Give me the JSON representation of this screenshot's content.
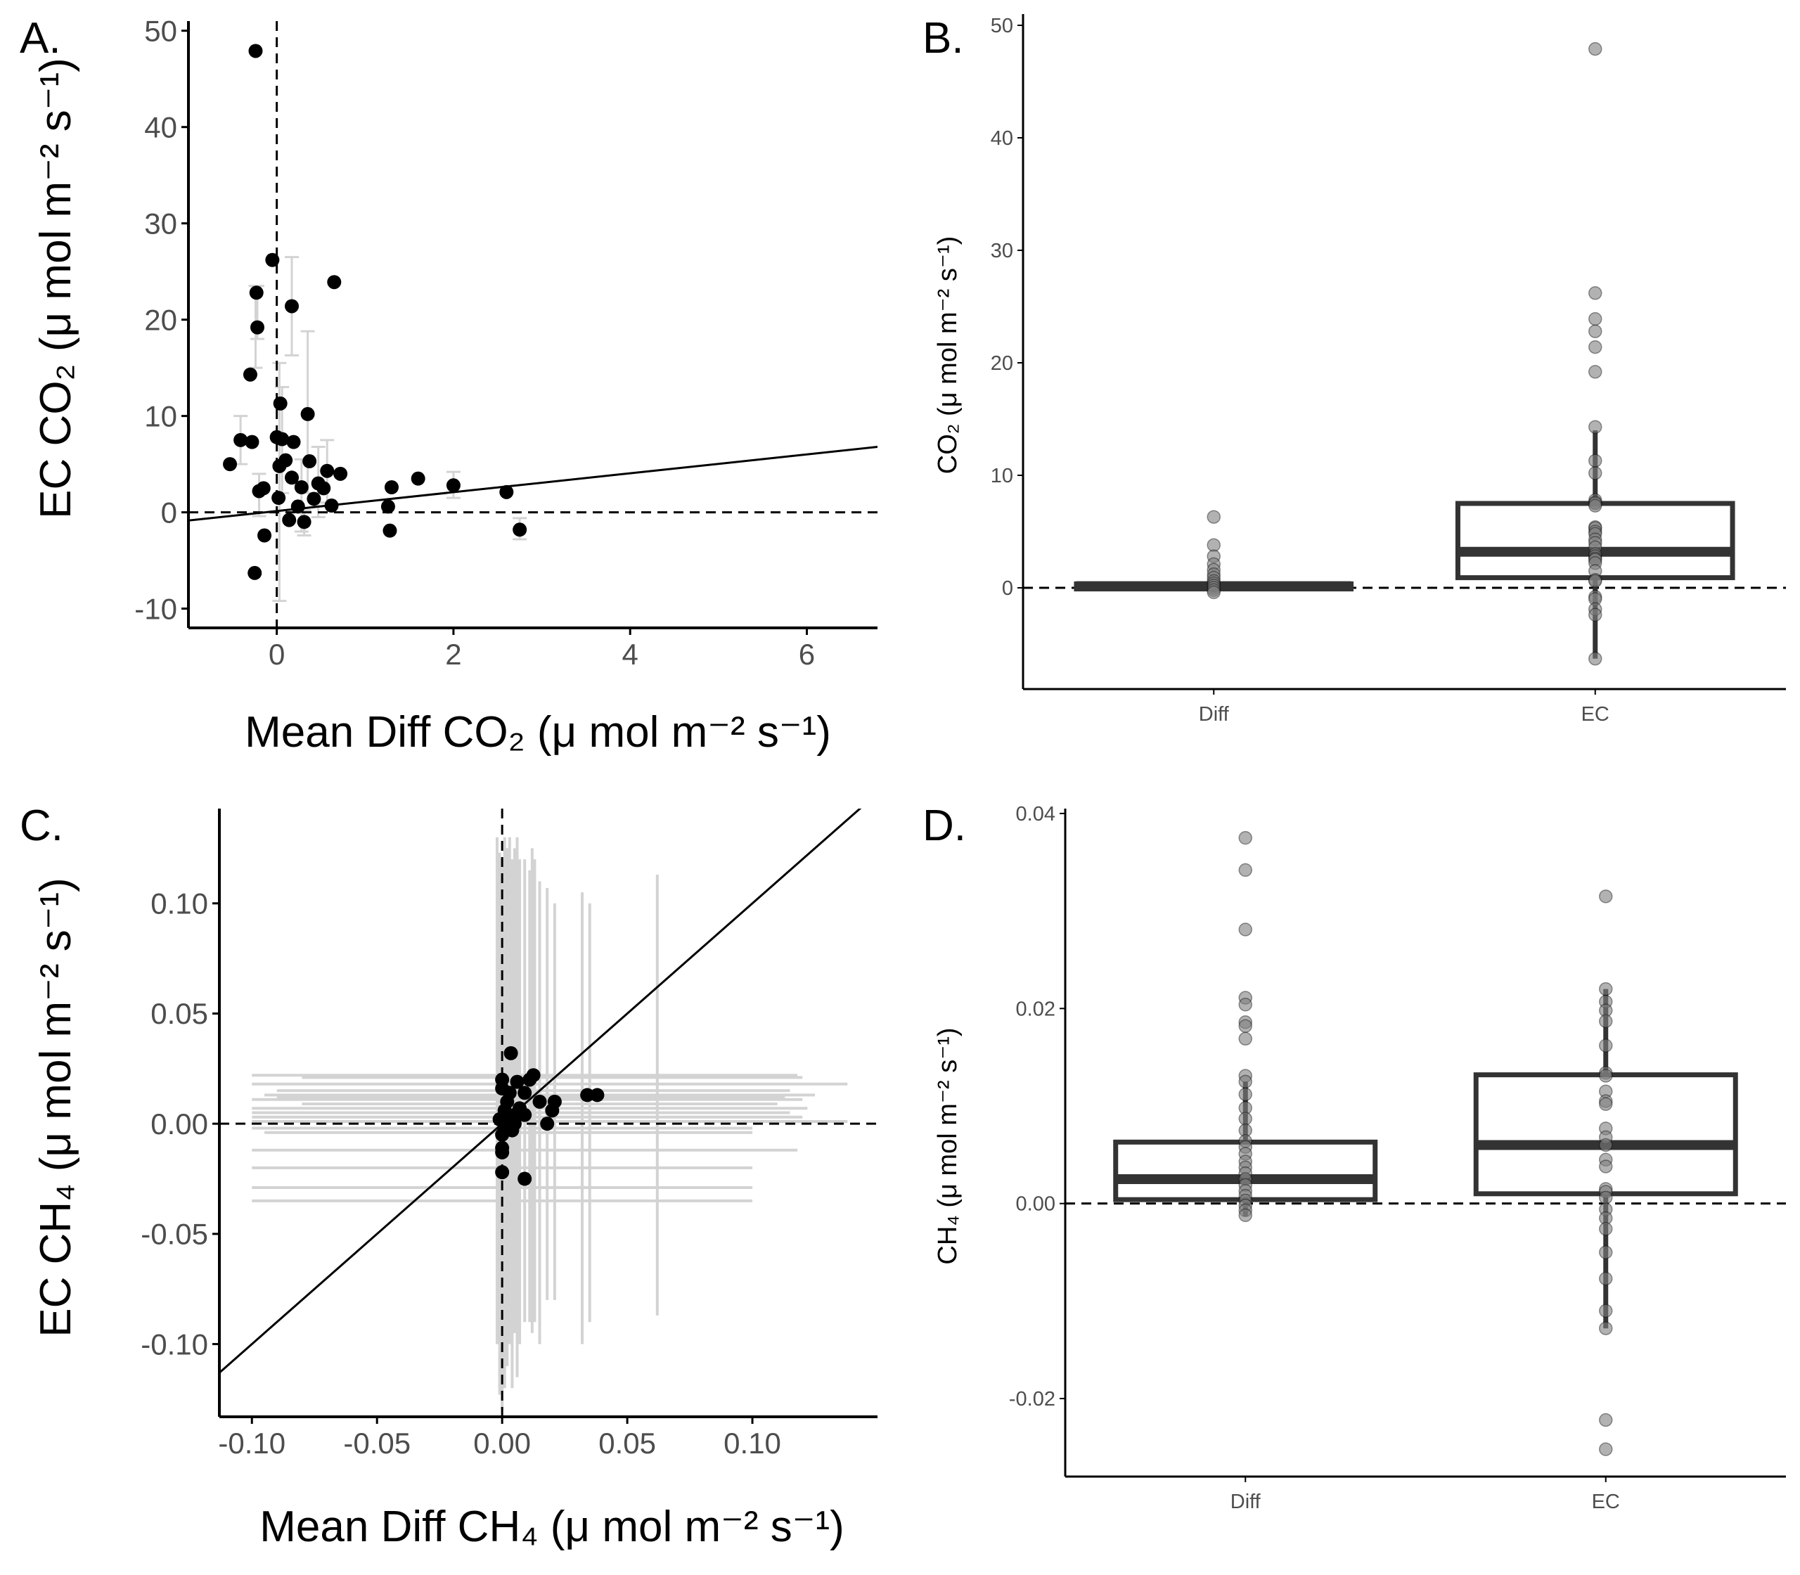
{
  "colors": {
    "point": "#000000",
    "errorbar": "#d3d3d3",
    "box": "#333333",
    "jitter_point": "#7f7f7f",
    "axis": "#000000",
    "tick_text": "#4d4d4d"
  },
  "chart_data": [
    {
      "panel": "A.",
      "type": "scatter",
      "xlabel": "Mean Diff CO₂ (μ mol m⁻² s⁻¹)",
      "ylabel": "EC CO₂ (μ mol m⁻² s⁻¹)",
      "xlim": [
        -1,
        6.8
      ],
      "ylim": [
        -12,
        51
      ],
      "xticks": [
        0,
        2,
        4,
        6
      ],
      "yticks": [
        -10,
        0,
        10,
        20,
        30,
        40,
        50
      ],
      "hline": 0,
      "vline": 0,
      "fit_line": {
        "intercept": 0.13,
        "slope": 0.98
      },
      "points": [
        {
          "x": -0.24,
          "y": 47.9
        },
        {
          "x": -0.05,
          "y": 26.2
        },
        {
          "x": 0.65,
          "y": 23.9
        },
        {
          "x": -0.23,
          "y": 22.8
        },
        {
          "x": 0.17,
          "y": 21.4
        },
        {
          "x": -0.22,
          "y": 19.2
        },
        {
          "x": -0.3,
          "y": 14.3
        },
        {
          "x": 0.04,
          "y": 11.3
        },
        {
          "x": 0.35,
          "y": 10.2
        },
        {
          "x": 0.0,
          "y": 7.8
        },
        {
          "x": 0.06,
          "y": 7.6
        },
        {
          "x": -0.41,
          "y": 7.5
        },
        {
          "x": -0.28,
          "y": 7.3
        },
        {
          "x": 0.19,
          "y": 7.3
        },
        {
          "x": 0.1,
          "y": 5.4
        },
        {
          "x": 0.37,
          "y": 5.3
        },
        {
          "x": -0.53,
          "y": 5.0
        },
        {
          "x": 0.03,
          "y": 4.8
        },
        {
          "x": 0.57,
          "y": 4.3
        },
        {
          "x": 0.72,
          "y": 4.0
        },
        {
          "x": 0.17,
          "y": 3.6
        },
        {
          "x": 1.6,
          "y": 3.5
        },
        {
          "x": 0.47,
          "y": 3.0
        },
        {
          "x": 2.0,
          "y": 2.8
        },
        {
          "x": 0.28,
          "y": 2.6
        },
        {
          "x": -0.15,
          "y": 2.5
        },
        {
          "x": 0.53,
          "y": 2.5
        },
        {
          "x": 1.3,
          "y": 2.6
        },
        {
          "x": -0.2,
          "y": 2.2
        },
        {
          "x": 2.6,
          "y": 2.1
        },
        {
          "x": 0.02,
          "y": 1.5
        },
        {
          "x": 0.42,
          "y": 1.4
        },
        {
          "x": 0.24,
          "y": 0.6
        },
        {
          "x": 0.62,
          "y": 0.7
        },
        {
          "x": 1.26,
          "y": 0.6
        },
        {
          "x": 0.14,
          "y": -0.8
        },
        {
          "x": 0.31,
          "y": -1.0
        },
        {
          "x": 1.28,
          "y": -1.9
        },
        {
          "x": 2.75,
          "y": -1.8
        },
        {
          "x": -0.14,
          "y": -2.4
        },
        {
          "x": -0.25,
          "y": -6.3
        }
      ],
      "errorbars": [
        {
          "x": -0.24,
          "y": 19.2,
          "xlo": -0.28,
          "xhi": -0.2,
          "ylo": 15.0,
          "yhi": 23.5
        },
        {
          "x": 0.17,
          "y": 21.4,
          "xlo": 0.1,
          "xhi": 0.24,
          "ylo": 16.3,
          "yhi": 26.5
        },
        {
          "x": -0.22,
          "y": 22.8,
          "xlo": -0.28,
          "xhi": -0.16,
          "ylo": 18.0,
          "yhi": 23.5
        },
        {
          "x": 0.35,
          "y": 10.2,
          "xlo": 0.28,
          "xhi": 0.42,
          "ylo": 2.0,
          "yhi": 18.8
        },
        {
          "x": 0.06,
          "y": 7.6,
          "xlo": 0.0,
          "xhi": 0.12,
          "ylo": 2.0,
          "yhi": 13.0
        },
        {
          "x": -0.41,
          "y": 7.5,
          "xlo": -0.46,
          "xhi": -0.36,
          "ylo": 5.0,
          "yhi": 10.0
        },
        {
          "x": 0.03,
          "y": 4.8,
          "xlo": -0.02,
          "xhi": 0.08,
          "ylo": -9.2,
          "yhi": 15.5
        },
        {
          "x": 0.57,
          "y": 4.3,
          "xlo": 0.5,
          "xhi": 0.64,
          "ylo": 1.0,
          "yhi": 7.5
        },
        {
          "x": 0.47,
          "y": 3.0,
          "xlo": 0.4,
          "xhi": 0.54,
          "ylo": -0.5,
          "yhi": 6.8
        },
        {
          "x": 2.0,
          "y": 2.8,
          "xlo": 1.93,
          "xhi": 2.07,
          "ylo": 1.5,
          "yhi": 4.2
        },
        {
          "x": 0.28,
          "y": 2.6,
          "xlo": 0.22,
          "xhi": 0.34,
          "ylo": -2.0,
          "yhi": 5.5
        },
        {
          "x": -0.2,
          "y": 2.2,
          "xlo": -0.26,
          "xhi": -0.14,
          "ylo": -0.4,
          "yhi": 4.0
        },
        {
          "x": 2.75,
          "y": -1.8,
          "xlo": 2.68,
          "xhi": 2.82,
          "ylo": -2.8,
          "yhi": -0.6
        },
        {
          "x": 0.31,
          "y": -1.0,
          "xlo": 0.25,
          "xhi": 0.37,
          "ylo": -2.4,
          "yhi": 0.2
        }
      ]
    },
    {
      "panel": "B.",
      "type": "box",
      "categories": [
        "Diff",
        "EC"
      ],
      "ylabel": "CO₂ (μ mol m⁻² s⁻¹)",
      "ylim": [
        -9,
        51
      ],
      "yticks": [
        0,
        10,
        20,
        30,
        40,
        50
      ],
      "hline": 0,
      "boxes": [
        {
          "category": "Diff",
          "q1": -0.1,
          "median": 0.15,
          "q3": 0.35,
          "whisker_low": -0.4,
          "whisker_high": 0.8
        },
        {
          "category": "EC",
          "q1": 0.9,
          "median": 3.2,
          "q3": 7.5,
          "whisker_low": -6.3,
          "whisker_high": 14.0
        }
      ],
      "points": [
        {
          "category": "Diff",
          "values": [
            6.3,
            3.8,
            2.8,
            2.1,
            1.6,
            1.2,
            0.9,
            0.6,
            0.4,
            0.2,
            0.0,
            -0.2,
            -0.4
          ]
        },
        {
          "category": "EC",
          "values": [
            47.9,
            26.2,
            23.9,
            22.8,
            21.4,
            19.2,
            14.3,
            11.3,
            10.2,
            7.8,
            7.6,
            7.5,
            7.3,
            5.4,
            5.3,
            5.0,
            4.8,
            4.3,
            4.0,
            3.6,
            3.0,
            2.8,
            2.6,
            2.5,
            2.2,
            1.5,
            0.7,
            0.6,
            -0.8,
            -1.0,
            -1.9,
            -2.4,
            -6.3
          ]
        }
      ]
    },
    {
      "panel": "C.",
      "type": "scatter",
      "xlabel": "Mean Diff CH₄ (μ mol m⁻² s⁻¹)",
      "ylabel": "EC CH₄ (μ mol m⁻² s⁻¹)",
      "xlim": [
        -0.113,
        0.15
      ],
      "ylim": [
        -0.133,
        0.143
      ],
      "xticks": [
        -0.1,
        -0.05,
        0.0,
        0.05,
        0.1
      ],
      "xtick_labels": [
        "-0.10",
        "-0.05",
        "0.00",
        "0.05",
        "0.10"
      ],
      "yticks": [
        -0.1,
        -0.05,
        0.0,
        0.05,
        0.1
      ],
      "ytick_labels": [
        "-0.10",
        "-0.05",
        "0.00",
        "0.05",
        "0.10"
      ],
      "hline": 0,
      "vline": 0,
      "fit_line": {
        "intercept": 0.0,
        "slope": 1.0
      },
      "points": [
        {
          "x": 0.0035,
          "y": 0.032
        },
        {
          "x": 0.038,
          "y": 0.013
        },
        {
          "x": 0.034,
          "y": 0.013
        },
        {
          "x": 0.0125,
          "y": 0.022
        },
        {
          "x": 0.011,
          "y": 0.02
        },
        {
          "x": 0.0,
          "y": 0.02
        },
        {
          "x": 0.006,
          "y": 0.019
        },
        {
          "x": 0.0,
          "y": 0.016
        },
        {
          "x": 0.003,
          "y": 0.014
        },
        {
          "x": 0.009,
          "y": 0.014
        },
        {
          "x": 0.015,
          "y": 0.01
        },
        {
          "x": 0.021,
          "y": 0.01
        },
        {
          "x": 0.002,
          "y": 0.01
        },
        {
          "x": 0.007,
          "y": 0.007
        },
        {
          "x": 0.02,
          "y": 0.006
        },
        {
          "x": 0.001,
          "y": 0.006
        },
        {
          "x": 0.005,
          "y": 0.004
        },
        {
          "x": 0.009,
          "y": 0.004
        },
        {
          "x": 0.0,
          "y": 0.002
        },
        {
          "x": -0.001,
          "y": 0.002
        },
        {
          "x": 0.018,
          "y": 0.0
        },
        {
          "x": 0.005,
          "y": 0.0
        },
        {
          "x": 0.001,
          "y": -0.002
        },
        {
          "x": 0.004,
          "y": -0.003
        },
        {
          "x": 0.0,
          "y": -0.005
        },
        {
          "x": 0.0,
          "y": -0.011
        },
        {
          "x": 0.0,
          "y": -0.013
        },
        {
          "x": 0.0,
          "y": -0.022
        },
        {
          "x": 0.009,
          "y": -0.025
        }
      ],
      "errorbars_h": [
        {
          "y": 0.022,
          "xlo": -0.1,
          "xhi": 0.118
        },
        {
          "y": 0.021,
          "xlo": -0.08,
          "xhi": 0.12
        },
        {
          "y": 0.018,
          "xlo": -0.1,
          "xhi": 0.138
        },
        {
          "y": 0.015,
          "xlo": -0.09,
          "xhi": 0.115
        },
        {
          "y": 0.013,
          "xlo": -0.095,
          "xhi": 0.125
        },
        {
          "y": 0.012,
          "xlo": -0.09,
          "xhi": 0.113
        },
        {
          "y": 0.011,
          "xlo": -0.1,
          "xhi": 0.12
        },
        {
          "y": 0.009,
          "xlo": -0.08,
          "xhi": 0.11
        },
        {
          "y": 0.007,
          "xlo": -0.1,
          "xhi": 0.122
        },
        {
          "y": 0.005,
          "xlo": -0.1,
          "xhi": 0.115
        },
        {
          "y": 0.003,
          "xlo": -0.1,
          "xhi": 0.12
        },
        {
          "y": 0.001,
          "xlo": -0.1,
          "xhi": 0.138
        },
        {
          "y": -0.002,
          "xlo": -0.1,
          "xhi": 0.1
        },
        {
          "y": -0.004,
          "xlo": -0.095,
          "xhi": 0.1
        },
        {
          "y": -0.012,
          "xlo": -0.1,
          "xhi": 0.118
        },
        {
          "y": -0.02,
          "xlo": -0.1,
          "xhi": 0.1
        },
        {
          "y": -0.029,
          "xlo": -0.1,
          "xhi": 0.1
        },
        {
          "y": -0.035,
          "xlo": -0.1,
          "xhi": 0.1
        }
      ],
      "errorbars_v": [
        {
          "x": -0.002,
          "ylo": -0.1,
          "yhi": 0.13
        },
        {
          "x": -0.001,
          "ylo": -0.123,
          "yhi": 0.123
        },
        {
          "x": 0.0,
          "ylo": -0.13,
          "yhi": 0.12
        },
        {
          "x": 0.001,
          "ylo": -0.12,
          "yhi": 0.13
        },
        {
          "x": 0.002,
          "ylo": -0.11,
          "yhi": 0.125
        },
        {
          "x": 0.003,
          "ylo": -0.1,
          "yhi": 0.13
        },
        {
          "x": 0.004,
          "ylo": -0.12,
          "yhi": 0.12
        },
        {
          "x": 0.005,
          "ylo": -0.095,
          "yhi": 0.125
        },
        {
          "x": 0.006,
          "ylo": -0.115,
          "yhi": 0.13
        },
        {
          "x": 0.007,
          "ylo": -0.1,
          "yhi": 0.12
        },
        {
          "x": 0.009,
          "ylo": -0.09,
          "yhi": 0.12
        },
        {
          "x": 0.011,
          "ylo": -0.09,
          "yhi": 0.115
        },
        {
          "x": 0.012,
          "ylo": -0.095,
          "yhi": 0.125
        },
        {
          "x": 0.013,
          "ylo": -0.09,
          "yhi": 0.12
        },
        {
          "x": 0.015,
          "ylo": -0.1,
          "yhi": 0.11
        },
        {
          "x": 0.018,
          "ylo": -0.08,
          "yhi": 0.107
        },
        {
          "x": 0.021,
          "ylo": -0.08,
          "yhi": 0.1
        },
        {
          "x": 0.032,
          "ylo": -0.1,
          "yhi": 0.105
        },
        {
          "x": 0.035,
          "ylo": -0.09,
          "yhi": 0.1
        },
        {
          "x": 0.062,
          "ylo": -0.087,
          "yhi": 0.113
        }
      ]
    },
    {
      "panel": "D.",
      "type": "box",
      "categories": [
        "Diff",
        "EC"
      ],
      "ylabel": "CH₄ (μ mol m⁻² s⁻¹)",
      "ylim": [
        -0.028,
        0.0405
      ],
      "yticks": [
        -0.02,
        0.0,
        0.02,
        0.04
      ],
      "ytick_labels": [
        "-0.02",
        "0.00",
        "0.02",
        "0.04"
      ],
      "hline": 0,
      "boxes": [
        {
          "category": "Diff",
          "q1": 0.0004,
          "median": 0.0025,
          "q3": 0.0063,
          "whisker_low": -0.0013,
          "whisker_high": 0.0125
        },
        {
          "category": "EC",
          "q1": 0.001,
          "median": 0.006,
          "q3": 0.0132,
          "whisker_low": -0.0128,
          "whisker_high": 0.022
        }
      ],
      "points": [
        {
          "category": "Diff",
          "values": [
            0.0375,
            0.0342,
            0.0281,
            0.0211,
            0.0204,
            0.0186,
            0.0182,
            0.0169,
            0.0131,
            0.0125,
            0.0112,
            0.0098,
            0.0087,
            0.0075,
            0.0064,
            0.0058,
            0.0051,
            0.0043,
            0.0037,
            0.0031,
            0.0025,
            0.0019,
            0.0013,
            0.0008,
            0.0003,
            -0.0002,
            -0.0007,
            -0.0012
          ]
        },
        {
          "category": "EC",
          "values": [
            0.0315,
            0.022,
            0.0207,
            0.0198,
            0.0187,
            0.0162,
            0.0134,
            0.0131,
            0.0115,
            0.0105,
            0.0102,
            0.0077,
            0.0068,
            0.006,
            0.0045,
            0.0038,
            0.0015,
            0.0012,
            0.0006,
            -0.0006,
            -0.0015,
            -0.0026,
            -0.005,
            -0.0077,
            -0.011,
            -0.0128,
            -0.0222,
            -0.0252
          ]
        }
      ]
    }
  ]
}
